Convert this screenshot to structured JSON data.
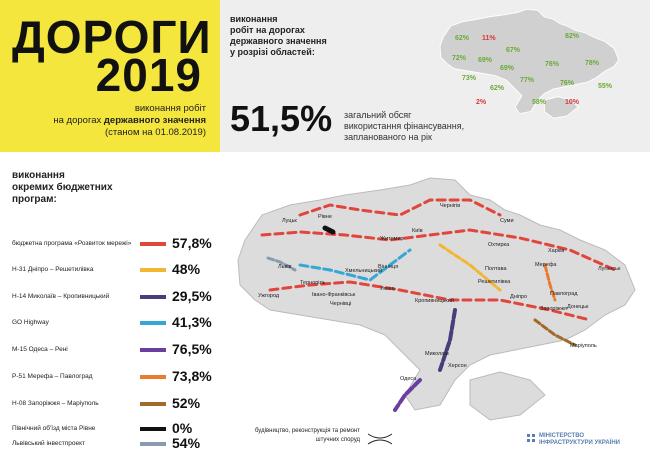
{
  "header": {
    "title": "ДОРОГИ",
    "year": "2019",
    "subtitle_line1": "виконання робіт",
    "subtitle_line2_plain": "на дорогах",
    "subtitle_line2_bold": "державного значення",
    "subtitle_line3": "(станом на 01.08.2019)"
  },
  "regions_panel": {
    "heading_lines": [
      "виконання",
      "робіт на дорогах",
      "державного значення",
      "у розрізі областей:"
    ],
    "total": "51,5%",
    "total_desc_lines": [
      "загальний обсяг",
      "використання фінансування,",
      "запланованого на рік"
    ],
    "region_labels": [
      "62%",
      "11%",
      "67%",
      "82%",
      "72%",
      "69%",
      "69%",
      "76%",
      "78%",
      "77%",
      "76%",
      "73%",
      "62%",
      "2%",
      "58%",
      "10%",
      "55%"
    ]
  },
  "programs": {
    "heading_lines": [
      "виконання",
      "окремих бюджетних",
      "програм:"
    ],
    "items": [
      {
        "name": "бюджетна програма «Розвиток мережі»",
        "value": "57,8%",
        "color": "#e0463c"
      },
      {
        "name": "Н-31 Дніпро – Решетилівка",
        "value": "48%",
        "color": "#f2b632"
      },
      {
        "name": "Н-14 Миколаїв – Кропивницький",
        "value": "29,5%",
        "color": "#4b3d7a"
      },
      {
        "name": "GO Highway",
        "value": "41,3%",
        "color": "#35a7d4"
      },
      {
        "name": "М-15 Одеса – Рені",
        "value": "76,5%",
        "color": "#6a3fa0"
      },
      {
        "name": "Р-51 Мерефа – Павлоград",
        "value": "73,8%",
        "color": "#e87b2c"
      },
      {
        "name": "Н-08 Запоріжжя – Маріуполь",
        "value": "52%",
        "color": "#a06a2a"
      },
      {
        "name": "Північний об'їзд міста Рівне",
        "value": "0%",
        "color": "#111111"
      },
      {
        "name": "Львівський інвестпроект",
        "value": "54%",
        "color": "#8a9bb0"
      }
    ]
  },
  "map": {
    "cities": [
      "Луцьк",
      "Рівне",
      "Житомир",
      "Київ",
      "Чернігів",
      "Суми",
      "Харків",
      "Львів",
      "Тернопіль",
      "Хмельницький",
      "Вінниця",
      "Ужгород",
      "Івано-Франківськ",
      "Чернівці",
      "Умань",
      "Кропивницький",
      "Полтава",
      "Решетилівка",
      "Охтирка",
      "Дніпро",
      "Запоріжжя",
      "Донецьк",
      "Луганськ",
      "Маріуполь",
      "Миколаїв",
      "Херсон",
      "Одеса",
      "Мерефа",
      "Павлоград"
    ],
    "legend_lines": [
      "будівництво, реконструкція та ремонт",
      "штучних споруд"
    ]
  },
  "logo_lines": [
    "МІНІСТЕРСТВО",
    "ІНФРАСТРУКТУРИ УКРАЇНИ"
  ]
}
